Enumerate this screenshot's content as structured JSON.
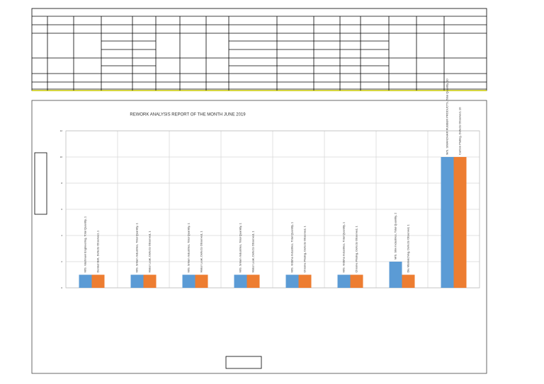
{
  "chart_data": {
    "type": "bar",
    "title": "REWORK ANALYSIS REPORT OF THE MONTH JUNE 2019",
    "series": [
      {
        "color": "#5b9bd5",
        "values": [
          1,
          1,
          1,
          1,
          1,
          1,
          2,
          10
        ],
        "value_labels": [
          "M/S. Vaishnavi Engineering, Total Quantity, 1",
          "M/S. Sriram Industries, Total Quantity, 1",
          "M/S. Sriram Industries, Total Quantity, 1",
          "M/S. Sriram Industries, Total Quantity, 1",
          "M/S. Vidisha Industries, Total Quantity, 1",
          "M/S. Vidisha Industries, Total Quantity, 1",
          "M/S. Shiv Industries, Total Quantity, 2",
          "M/S. SIMANDHAR RUBBER PRODUCTS, Total Quantity, 10"
        ]
      },
      {
        "color": "#ed7d31",
        "values": [
          1,
          1,
          1,
          1,
          1,
          1,
          1,
          10
        ],
        "value_labels": [
          "Dented Bolt, Defects Observed, 1",
          "Water Leak, Defects Observed, 1",
          "Water Leak, Defects Observed, 1",
          "Water Leak, Defects Observed, 1",
          "Chrome Plating, Defects Observed, 1",
          "Chrome Plating, Defects Observed, 1",
          "Dia Mismatching, Defects Observed, 1",
          "Carbon Plating, Defects Observed, 10"
        ]
      }
    ],
    "ylim": [
      0,
      12
    ],
    "yticks": [
      0,
      2,
      4,
      6,
      8,
      10,
      12
    ],
    "grid": true
  }
}
